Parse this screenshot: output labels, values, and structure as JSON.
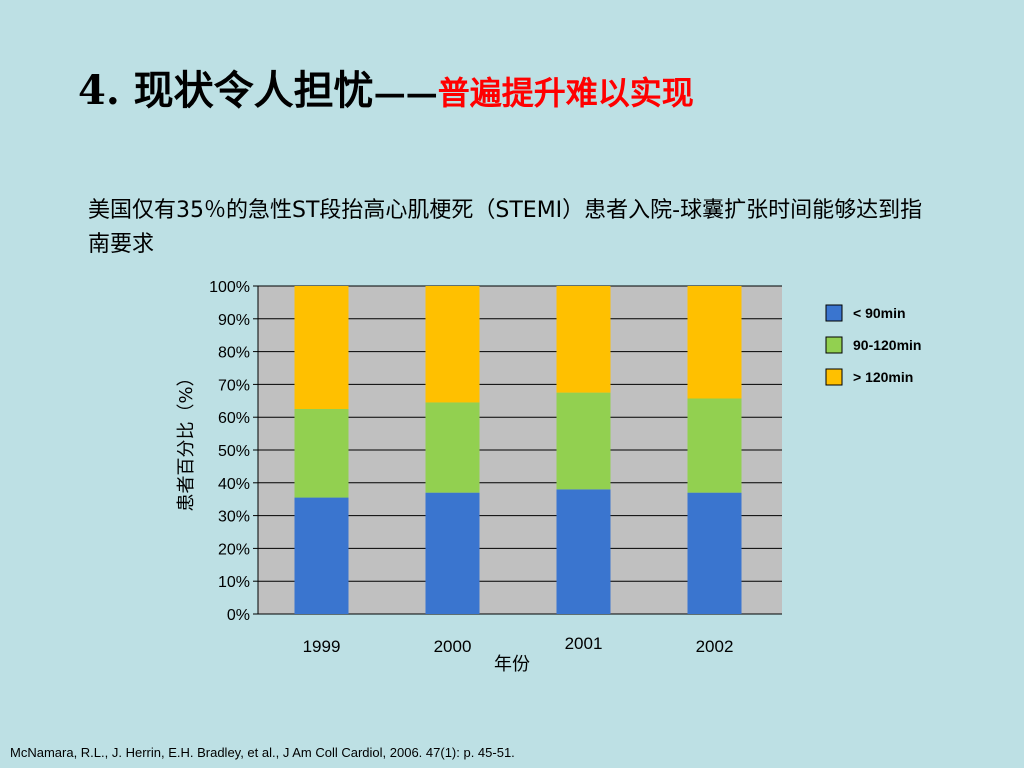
{
  "slide": {
    "title_main": "4. 现状令人担忧",
    "title_dash": "——",
    "title_sub": "普遍提升难以实现",
    "subtitle": "美国仅有35％的急性ST段抬高心肌梗死（STEMI）患者入院-球囊扩张时间能够达到指南要求",
    "citation": "McNamara, R.L., J. Herrin, E.H. Bradley, et al., J Am Coll Cardiol, 2006. 47(1): p. 45-51."
  },
  "chart_data": {
    "type": "bar",
    "stacked": true,
    "percent": true,
    "categories": [
      "1999",
      "2000",
      "2001",
      "2002"
    ],
    "xlabel": "年份",
    "ylabel": "患者百分比（%）",
    "ylim": [
      0,
      100
    ],
    "yticks": [
      "0%",
      "10%",
      "20%",
      "30%",
      "40%",
      "50%",
      "60%",
      "70%",
      "80%",
      "90%",
      "100%"
    ],
    "grid": true,
    "legend_position": "right",
    "series": [
      {
        "name": "< 90min",
        "values": [
          35.5,
          37,
          38,
          37
        ],
        "color": "#3a75cf"
      },
      {
        "name": "90-120min",
        "values": [
          27,
          27.5,
          29.5,
          28.7
        ],
        "color": "#92d050"
      },
      {
        "name": "> 120min",
        "values": [
          37.5,
          35.5,
          32.5,
          34.3
        ],
        "color": "#ffc000"
      }
    ],
    "plot_background": "#c0c0c0"
  }
}
